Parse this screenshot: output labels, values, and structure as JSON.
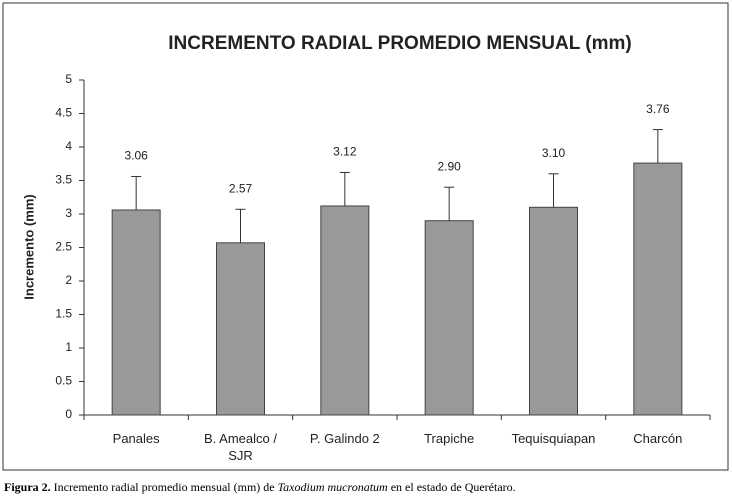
{
  "chart_data": {
    "type": "bar",
    "title": "INCREMENTO RADIAL PROMEDIO MENSUAL (mm)",
    "y_label": "Incremento (mm)",
    "categories": [
      "Panales",
      "B. Amealco / SJR",
      "P. Galindo 2",
      "Trapiche",
      "Tequisquiapan",
      "Charcón"
    ],
    "values": [
      3.06,
      2.57,
      3.12,
      2.9,
      3.1,
      3.76
    ],
    "value_labels": [
      "3.06",
      "2.57",
      "3.12",
      "2.90",
      "3.10",
      "3.76"
    ],
    "errors": [
      0.5,
      0.5,
      0.5,
      0.5,
      0.5,
      0.5
    ],
    "color": "#999999",
    "ylim": [
      0,
      5
    ],
    "yticks": [
      0,
      0.5,
      1,
      1.5,
      2,
      2.5,
      3,
      3.5,
      4,
      4.5,
      5
    ],
    "grid": false
  },
  "caption": {
    "label": "Figura 2.",
    "text_before": "Incremento radial promedio mensual (mm) de",
    "species": "Taxodium mucronatum",
    "text_after": "en el estado de Querétaro."
  }
}
